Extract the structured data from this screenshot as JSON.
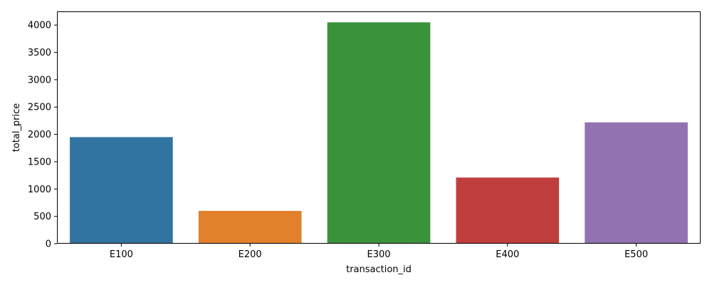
{
  "chart_data": {
    "type": "bar",
    "categories": [
      "E100",
      "E200",
      "E300",
      "E400",
      "E500"
    ],
    "values": [
      1950,
      600,
      4050,
      1210,
      2220
    ],
    "colors": [
      "#3274a1",
      "#e1812c",
      "#3a923a",
      "#c03d3e",
      "#9372b2"
    ],
    "title": "",
    "xlabel": "transaction_id",
    "ylabel": "total_price",
    "ylim": [
      0,
      4250
    ],
    "yticks": [
      0,
      500,
      1000,
      1500,
      2000,
      2500,
      3000,
      3500,
      4000
    ],
    "ytick_labels": [
      "0",
      "500",
      "1000",
      "1500",
      "2000",
      "2500",
      "3000",
      "3500",
      "4000"
    ],
    "grid": false,
    "legend": "none"
  }
}
